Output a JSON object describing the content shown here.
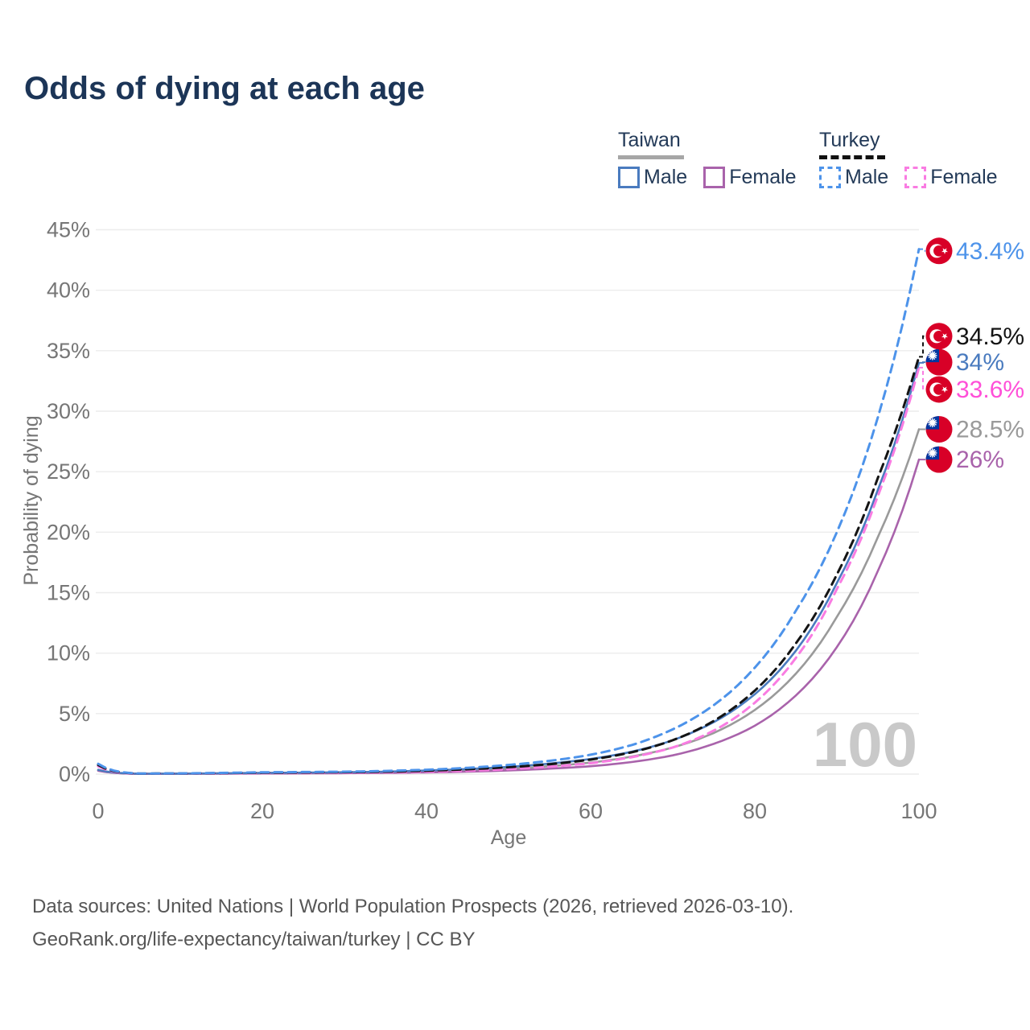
{
  "title": "Odds of dying at each age",
  "legend": {
    "groups": [
      {
        "name": "Taiwan",
        "line_style": "solid",
        "underline_color": "#a6a6a6",
        "items": [
          {
            "label": "Male",
            "color": "#4a7bbf"
          },
          {
            "label": "Female",
            "color": "#a963ab"
          }
        ]
      },
      {
        "name": "Turkey",
        "line_style": "dashed",
        "underline_color": "#111111",
        "items": [
          {
            "label": "Male",
            "color": "#4d93ea"
          },
          {
            "label": "Female",
            "color": "#f97ce2"
          }
        ]
      }
    ]
  },
  "watermark": "100",
  "footer": {
    "line1": "Data sources: United Nations | World Population Prospects (2026, retrieved 2026-03-10).",
    "line2": "GeoRank.org/life-expectancy/taiwan/turkey | CC BY"
  },
  "chart_data": {
    "type": "line",
    "title": "Odds of dying at each age",
    "xlabel": "Age",
    "ylabel": "Probability of dying",
    "xlim": [
      0,
      100
    ],
    "ylim": [
      0,
      45
    ],
    "grid": "horizontal",
    "legend_position": "top-right",
    "x_ticks": [
      {
        "value": 0,
        "label": "0"
      },
      {
        "value": 20,
        "label": "20"
      },
      {
        "value": 40,
        "label": "40"
      },
      {
        "value": 60,
        "label": "60"
      },
      {
        "value": 80,
        "label": "80"
      },
      {
        "value": 100,
        "label": "100"
      }
    ],
    "y_ticks": [
      {
        "value": 0,
        "label": "0%"
      },
      {
        "value": 5,
        "label": "5%"
      },
      {
        "value": 10,
        "label": "10%"
      },
      {
        "value": 15,
        "label": "15%"
      },
      {
        "value": 20,
        "label": "20%"
      },
      {
        "value": 25,
        "label": "25%"
      },
      {
        "value": 30,
        "label": "30%"
      },
      {
        "value": 35,
        "label": "35%"
      },
      {
        "value": 40,
        "label": "40%"
      },
      {
        "value": 45,
        "label": "45%"
      }
    ],
    "x": [
      0,
      5,
      10,
      15,
      20,
      25,
      30,
      35,
      40,
      45,
      50,
      55,
      60,
      65,
      70,
      75,
      80,
      85,
      90,
      95,
      100
    ],
    "series": [
      {
        "name": "Taiwan Both sexes",
        "country": "Taiwan",
        "sex": "Both",
        "color": "#9a9a9a",
        "text_color": "#9a9a9a",
        "dashed": false,
        "flag": "taiwan",
        "end_label": "28.5%",
        "end_value": 28.5,
        "label_y_pct": 28.5,
        "values": [
          0.3,
          0.02,
          0.03,
          0.05,
          0.07,
          0.09,
          0.11,
          0.15,
          0.22,
          0.31,
          0.45,
          0.66,
          0.95,
          1.45,
          2.2,
          3.4,
          5.3,
          8.3,
          13.0,
          19.6,
          28.5
        ]
      },
      {
        "name": "Taiwan Female",
        "country": "Taiwan",
        "sex": "Female",
        "color": "#a963ab",
        "text_color": "#a963ab",
        "dashed": false,
        "flag": "taiwan",
        "end_label": "26%",
        "end_value": 26.0,
        "label_y_pct": 26.0,
        "values": [
          0.28,
          0.02,
          0.03,
          0.04,
          0.05,
          0.06,
          0.08,
          0.1,
          0.14,
          0.2,
          0.3,
          0.45,
          0.65,
          1.0,
          1.55,
          2.5,
          4.0,
          6.5,
          10.5,
          16.8,
          26.0
        ]
      },
      {
        "name": "Taiwan Male",
        "country": "Taiwan",
        "sex": "Male",
        "color": "#4a7bbf",
        "text_color": "#4a7bbf",
        "dashed": false,
        "flag": "taiwan",
        "end_label": "34%",
        "end_value": 34.0,
        "label_y_pct": 34.05,
        "values": [
          0.35,
          0.03,
          0.04,
          0.07,
          0.1,
          0.12,
          0.15,
          0.2,
          0.3,
          0.42,
          0.6,
          0.87,
          1.25,
          1.85,
          2.8,
          4.3,
          6.6,
          10.2,
          15.8,
          23.5,
          34.0
        ]
      },
      {
        "name": "Turkey Female",
        "country": "Turkey",
        "sex": "Female",
        "color": "#f97ce2",
        "text_color": "#ff4fd8",
        "dashed": true,
        "flag": "turkey",
        "end_label": "33.6%",
        "end_value": 33.6,
        "label_y_pct": 31.8,
        "values": [
          0.65,
          0.03,
          0.04,
          0.06,
          0.08,
          0.09,
          0.11,
          0.14,
          0.2,
          0.28,
          0.41,
          0.61,
          0.9,
          1.4,
          2.2,
          3.6,
          5.9,
          9.6,
          15.3,
          23.0,
          33.6
        ]
      },
      {
        "name": "Turkey Both sexes",
        "country": "Turkey",
        "sex": "Both",
        "color": "#141414",
        "text_color": "#141414",
        "dashed": true,
        "flag": "turkey",
        "end_label": "34.5%",
        "end_value": 34.5,
        "label_y_pct": 36.2,
        "values": [
          0.75,
          0.04,
          0.05,
          0.08,
          0.11,
          0.13,
          0.16,
          0.2,
          0.28,
          0.4,
          0.57,
          0.82,
          1.2,
          1.8,
          2.8,
          4.4,
          6.9,
          10.8,
          16.5,
          24.5,
          34.5
        ]
      },
      {
        "name": "Turkey Male",
        "country": "Turkey",
        "sex": "Male",
        "color": "#4d93ea",
        "text_color": "#4d93ea",
        "dashed": true,
        "flag": "turkey",
        "end_label": "43.4%",
        "end_value": 43.4,
        "label_y_pct": 43.25,
        "values": [
          0.85,
          0.05,
          0.06,
          0.1,
          0.15,
          0.17,
          0.2,
          0.26,
          0.36,
          0.52,
          0.76,
          1.1,
          1.6,
          2.4,
          3.7,
          5.7,
          8.8,
          13.5,
          20.0,
          29.5,
          43.4
        ]
      }
    ]
  }
}
